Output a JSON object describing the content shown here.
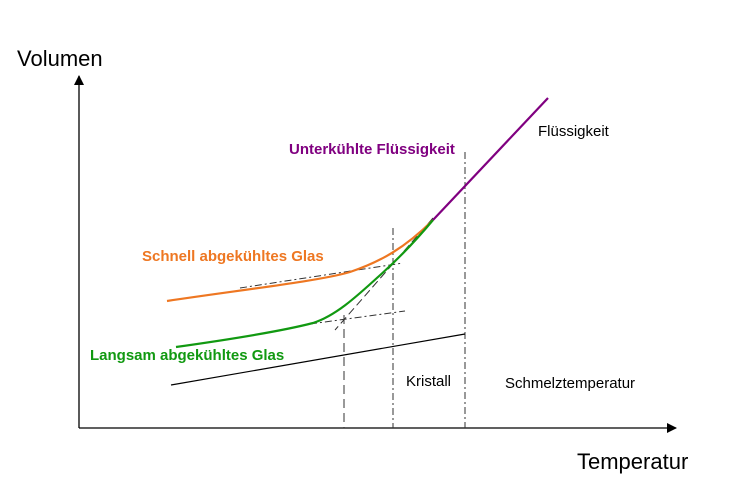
{
  "axes": {
    "y_label": "Volumen",
    "x_label": "Temperatur"
  },
  "labels": {
    "supercooled_liquid": "Unterkühlte Flüssigkeit",
    "liquid": "Flüssigkeit",
    "fast_cooled_glass": "Schnell abgekühltes Glas",
    "slow_cooled_glass": "Langsam abgekühltes Glas",
    "crystal": "Kristall",
    "melting_temperature": "Schmelztemperatur"
  },
  "colors": {
    "axis": "#000000",
    "liquid": "#800080",
    "fast_cooled_glass": "#ee7722",
    "slow_cooled_glass": "#119911",
    "crystal": "#000000",
    "guide": "#333333"
  }
}
